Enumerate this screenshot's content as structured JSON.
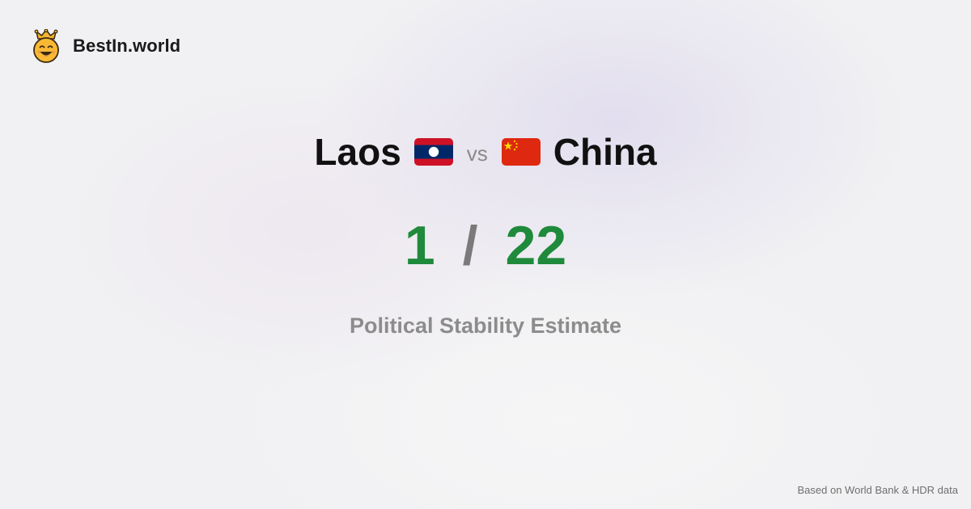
{
  "brand": {
    "name": "BestIn.world",
    "logo_icon": "crowned-smiley-icon"
  },
  "comparison": {
    "left_country": "Laos",
    "left_flag_icon": "laos-flag-icon",
    "vs_label": "vs",
    "right_country": "China",
    "right_flag_icon": "china-flag-icon"
  },
  "scores": {
    "left_rank": "1",
    "separator": "/",
    "right_rank": "22"
  },
  "metric": {
    "label": "Political Stability Estimate"
  },
  "footer": {
    "source_note": "Based on World Bank & HDR data"
  },
  "colors": {
    "background": "#f1f1f3",
    "rank_green": "#1f8a3b",
    "muted_gray": "#8c8c8c",
    "laos_red": "#ce1126",
    "laos_blue": "#002868",
    "china_red": "#de2910",
    "china_yellow": "#ffde00"
  }
}
